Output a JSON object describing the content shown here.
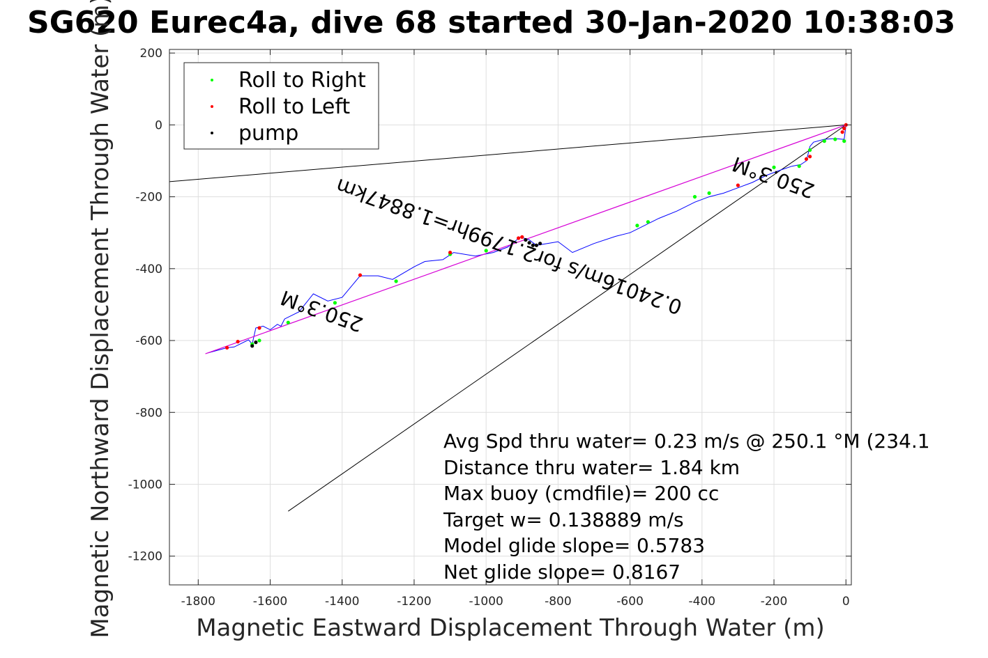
{
  "chart_data": {
    "type": "line",
    "title": "SG620 Eurec4a, dive 68 started 30-Jan-2020 10:38:03",
    "xlabel": "Magnetic Eastward Displacement Through Water (m)",
    "ylabel": "Magnetic Northward Displacement Through Water (m)",
    "xlim": [
      -1880,
      15
    ],
    "ylim": [
      -1280,
      210
    ],
    "xticks": [
      -1800,
      -1600,
      -1400,
      -1200,
      -1000,
      -800,
      -600,
      -400,
      -200,
      0
    ],
    "xtick_labels": [
      "-1800",
      "-1600",
      "-1400",
      "-1200",
      "-1000",
      "-800",
      "-600",
      "-400",
      "-200",
      "0"
    ],
    "yticks": [
      200,
      0,
      -200,
      -400,
      -600,
      -800,
      -1000,
      -1200
    ],
    "ytick_labels": [
      "200",
      "0",
      "-200",
      "-400",
      "-600",
      "-800",
      "-1000",
      "-1200"
    ],
    "grid": true,
    "legend": {
      "position": "top-left",
      "entries": [
        {
          "label": "Roll to Right",
          "color": "#00ff00"
        },
        {
          "label": "Roll to Left",
          "color": "#ff0000"
        },
        {
          "label": "pump",
          "color": "#000000"
        }
      ]
    },
    "colors": {
      "track": "#0000ff",
      "heading_line": "#d600d6",
      "roll_right": "#00ff00",
      "roll_left": "#ff0000",
      "pump": "#000000",
      "reference": "#000000"
    },
    "series": [
      {
        "line_type": "track",
        "x": [
          0,
          -5,
          -10,
          -30,
          -60,
          -90,
          -100,
          -105,
          -110,
          -125,
          -150,
          -180,
          -220,
          -260,
          -300,
          -340,
          -380,
          -420,
          -470,
          -520,
          -560,
          -600,
          -640,
          -700,
          -760,
          -800,
          -830,
          -860,
          -880,
          -905,
          -940,
          -980,
          -1030,
          -1090,
          -1120,
          -1170,
          -1200,
          -1260,
          -1300,
          -1350,
          -1400,
          -1440,
          -1480,
          -1520,
          -1560,
          -1570,
          -1580,
          -1600,
          -1620,
          -1640,
          -1650,
          -1660,
          -1700,
          -1720,
          -1775
        ],
        "y": [
          0,
          -40,
          -40,
          -38,
          -40,
          -48,
          -60,
          -80,
          -100,
          -110,
          -115,
          -125,
          -140,
          -160,
          -175,
          -190,
          -200,
          -215,
          -240,
          -260,
          -280,
          -300,
          -310,
          -330,
          -355,
          -325,
          -330,
          -335,
          -320,
          -312,
          -340,
          -355,
          -365,
          -355,
          -375,
          -380,
          -395,
          -430,
          -420,
          -420,
          -480,
          -490,
          -470,
          -520,
          -540,
          -560,
          -555,
          -570,
          -560,
          -565,
          -610,
          -598,
          -618,
          -620,
          -635
        ]
      },
      {
        "line_type": "heading",
        "x": [
          0,
          -1780
        ],
        "y": [
          0,
          -637
        ]
      }
    ],
    "reference_lines": [
      {
        "x": [
          0,
          -1880
        ],
        "y": [
          0,
          -158
        ]
      },
      {
        "x": [
          0,
          -1550
        ],
        "y": [
          0,
          -1075
        ]
      }
    ],
    "roll_right": {
      "x": [
        -5,
        -30,
        -60,
        -100,
        -130,
        -200,
        -380,
        -420,
        -550,
        -580,
        -1000,
        -1100,
        -1250,
        -1420,
        -1550,
        -1630,
        -1650
      ],
      "y": [
        -45,
        -40,
        -45,
        -70,
        -115,
        -118,
        -190,
        -200,
        -270,
        -280,
        -350,
        -360,
        -435,
        -495,
        -550,
        -600,
        -610
      ]
    },
    "roll_left": {
      "x": [
        0,
        -5,
        -10,
        -100,
        -110,
        -300,
        -900,
        -910,
        -1100,
        -1350,
        -1630,
        -1690,
        -1720
      ],
      "y": [
        0,
        -10,
        -20,
        -88,
        -95,
        -168,
        -312,
        -315,
        -355,
        -418,
        -565,
        -603,
        -620
      ]
    },
    "pump": {
      "x": [
        -850,
        -860,
        -870,
        -880,
        -890,
        -1650,
        -1640
      ],
      "y": [
        -330,
        -335,
        -335,
        -328,
        -320,
        -615,
        -605
      ]
    },
    "annotations": [
      {
        "text": "0.24016m/s for2.1799hr=1.8847km",
        "x": -930,
        "y": -320,
        "rotation_deg": 199.7
      },
      {
        "text": "250.3°M",
        "x": -195,
        "y": -128,
        "rotation_deg": 199.7
      },
      {
        "text": "250.3°M",
        "x": -1450,
        "y": -500,
        "rotation_deg": 199.7
      }
    ],
    "info_text": [
      "Avg Spd thru water=  0.23 m/s @ 250.1 °M (234.1",
      "Distance thru water=  1.84 km",
      "Max buoy (cmdfile)= 200 cc",
      "Target w= 0.138889 m/s",
      "Model glide slope= 0.5783",
      "Net glide slope= 0.8167"
    ]
  }
}
